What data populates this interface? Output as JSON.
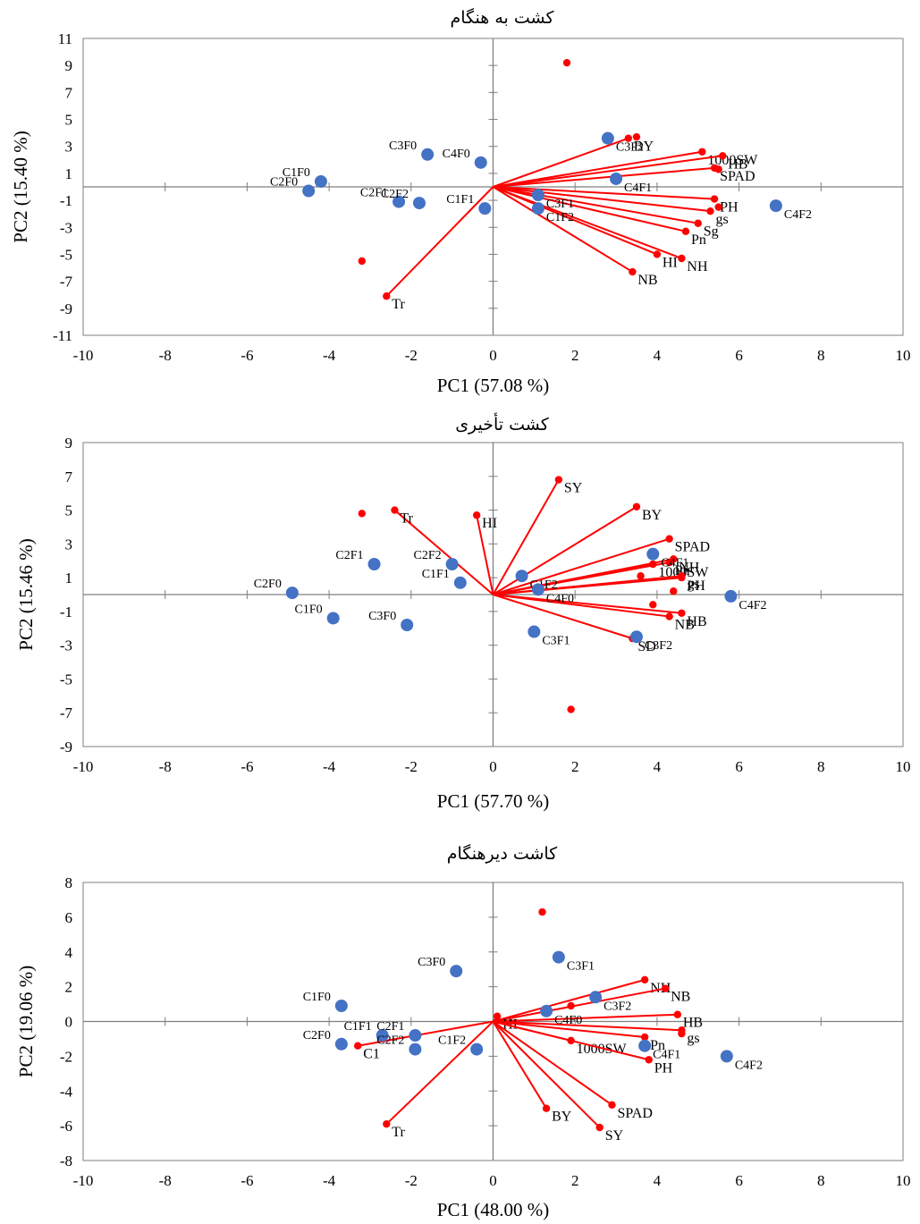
{
  "chart_data": [
    {
      "type": "scatter",
      "title": "کشت به هنگام",
      "xlabel": "PC1 (57.08 %)",
      "ylabel": "PC2 (15.40 %)",
      "xlim": [
        -10,
        10
      ],
      "ylim": [
        -11,
        11
      ],
      "xticks": [
        -10,
        -8,
        -6,
        -4,
        -2,
        0,
        2,
        4,
        6,
        8,
        10
      ],
      "yticks": [
        -11,
        -9,
        -7,
        -5,
        -3,
        -1,
        1,
        3,
        5,
        7,
        9,
        11
      ],
      "grid": false,
      "series": [
        {
          "name": "",
          "kind": "treatments",
          "color": "#4472c4",
          "points": [
            {
              "label": "C1F0",
              "x": -4.2,
              "y": 0.4
            },
            {
              "label": "C2F0",
              "x": -4.5,
              "y": -0.3
            },
            {
              "label": "C3F0",
              "x": -1.6,
              "y": 2.4
            },
            {
              "label": "C4F0",
              "x": -0.3,
              "y": 1.8
            },
            {
              "label": "C2F1",
              "x": -2.3,
              "y": -1.1
            },
            {
              "label": "C2F2",
              "x": -1.8,
              "y": -1.2
            },
            {
              "label": "C1F1",
              "x": -0.2,
              "y": -1.6
            },
            {
              "label": "C3F1",
              "x": 1.1,
              "y": -0.6
            },
            {
              "label": "C1F2",
              "x": 1.1,
              "y": -1.6
            },
            {
              "label": "C3F2",
              "x": 2.8,
              "y": 3.6
            },
            {
              "label": "C4F1",
              "x": 3.0,
              "y": 0.6
            },
            {
              "label": "C4F2",
              "x": 6.9,
              "y": -1.4
            }
          ]
        },
        {
          "name": "",
          "kind": "traits",
          "color": "#ff0000",
          "points": [
            {
              "label": "BY",
              "x": 3.3,
              "y": 3.6
            },
            {
              "label": "",
              "x": 3.5,
              "y": 3.7
            },
            {
              "label": "1000SW",
              "x": 5.1,
              "y": 2.6
            },
            {
              "label": "HB",
              "x": 5.6,
              "y": 2.3
            },
            {
              "label": "SPAD",
              "x": 5.4,
              "y": 1.4
            },
            {
              "label": "",
              "x": 5.5,
              "y": 1.3
            },
            {
              "label": "PH",
              "x": 5.4,
              "y": -0.9
            },
            {
              "label": "",
              "x": 5.5,
              "y": -1.5
            },
            {
              "label": "gs",
              "x": 5.3,
              "y": -1.8
            },
            {
              "label": "Sg",
              "x": 5.0,
              "y": -2.7
            },
            {
              "label": "Pn",
              "x": 4.7,
              "y": -3.3
            },
            {
              "label": "HI",
              "x": 4.0,
              "y": -5.0
            },
            {
              "label": "NH",
              "x": 4.6,
              "y": -5.3
            },
            {
              "label": "NB",
              "x": 3.4,
              "y": -6.3
            },
            {
              "label": "Tr",
              "x": -2.6,
              "y": -8.1
            },
            {
              "label": "",
              "x": -3.2,
              "y": -5.5
            },
            {
              "label": "",
              "x": 1.8,
              "y": 9.2
            }
          ]
        }
      ]
    },
    {
      "type": "scatter",
      "title": "کشت تأخیری",
      "xlabel": "PC1 (57.70 %)",
      "ylabel": "PC2 (15.46 %)",
      "xlim": [
        -10,
        10
      ],
      "ylim": [
        -9,
        9
      ],
      "xticks": [
        -10,
        -8,
        -6,
        -4,
        -2,
        0,
        2,
        4,
        6,
        8,
        10
      ],
      "yticks": [
        -9,
        -7,
        -5,
        -3,
        -1,
        1,
        3,
        5,
        7,
        9
      ],
      "grid": false,
      "series": [
        {
          "name": "",
          "kind": "treatments",
          "color": "#4472c4",
          "points": [
            {
              "label": "C2F0",
              "x": -4.9,
              "y": 0.1
            },
            {
              "label": "C1F0",
              "x": -3.9,
              "y": -1.4
            },
            {
              "label": "C2F1",
              "x": -2.9,
              "y": 1.8
            },
            {
              "label": "C3F0",
              "x": -2.1,
              "y": -1.8
            },
            {
              "label": "C2F2",
              "x": -1.0,
              "y": 1.8
            },
            {
              "label": "C1F1",
              "x": -0.8,
              "y": 0.7
            },
            {
              "label": "C1F2",
              "x": 0.7,
              "y": 1.1
            },
            {
              "label": "C4F0",
              "x": 1.1,
              "y": 0.3
            },
            {
              "label": "C3F1",
              "x": 1.0,
              "y": -2.2
            },
            {
              "label": "C3F2",
              "x": 3.5,
              "y": -2.5
            },
            {
              "label": "C4F1",
              "x": 3.9,
              "y": 2.4
            },
            {
              "label": "C4F2",
              "x": 5.8,
              "y": -0.1
            }
          ]
        },
        {
          "name": "",
          "kind": "traits",
          "color": "#ff0000",
          "points": [
            {
              "label": "SY",
              "x": 1.6,
              "y": 6.8
            },
            {
              "label": "BY",
              "x": 3.5,
              "y": 5.2
            },
            {
              "label": "SPAD",
              "x": 4.3,
              "y": 3.3
            },
            {
              "label": "NH",
              "x": 4.4,
              "y": 2.1
            },
            {
              "label": "Pn",
              "x": 4.3,
              "y": 1.9
            },
            {
              "label": "1000SW",
              "x": 3.9,
              "y": 1.8
            },
            {
              "label": "",
              "x": 3.6,
              "y": 1.1
            },
            {
              "label": "gs",
              "x": 4.6,
              "y": 1.1
            },
            {
              "label": "PH",
              "x": 4.6,
              "y": 1.0
            },
            {
              "label": "",
              "x": 4.4,
              "y": 0.2
            },
            {
              "label": "",
              "x": 3.9,
              "y": -0.6
            },
            {
              "label": "HB",
              "x": 4.6,
              "y": -1.1
            },
            {
              "label": "NB",
              "x": 4.3,
              "y": -1.3
            },
            {
              "label": "SD",
              "x": 3.4,
              "y": -2.6
            },
            {
              "label": "HI",
              "x": -0.4,
              "y": 4.7
            },
            {
              "label": "Tr",
              "x": -2.4,
              "y": 5.0
            },
            {
              "label": "",
              "x": -3.2,
              "y": 4.8
            },
            {
              "label": "",
              "x": 1.9,
              "y": -6.8
            }
          ]
        }
      ]
    },
    {
      "type": "scatter",
      "title": "کاشت دیرهنگام",
      "xlabel": "PC1 (48.00 %)",
      "ylabel": "PC2 (19.06 %)",
      "xlim": [
        -10,
        10
      ],
      "ylim": [
        -8,
        8
      ],
      "xticks": [
        -10,
        -8,
        -6,
        -4,
        -2,
        0,
        2,
        4,
        6,
        8,
        10
      ],
      "yticks": [
        -8,
        -6,
        -4,
        -2,
        0,
        2,
        4,
        6,
        8
      ],
      "grid": false,
      "series": [
        {
          "name": "",
          "kind": "treatments",
          "color": "#4472c4",
          "points": [
            {
              "label": "C1F0",
              "x": -3.7,
              "y": 0.9
            },
            {
              "label": "C2F0",
              "x": -3.7,
              "y": -1.3
            },
            {
              "label": "C1F1",
              "x": -2.7,
              "y": -0.8
            },
            {
              "label": "C2F1",
              "x": -1.9,
              "y": -0.8
            },
            {
              "label": "C2F2",
              "x": -1.9,
              "y": -1.6
            },
            {
              "label": "C3F0",
              "x": -0.9,
              "y": 2.9
            },
            {
              "label": "C1F2",
              "x": -0.4,
              "y": -1.6
            },
            {
              "label": "C4F0",
              "x": 1.3,
              "y": 0.6
            },
            {
              "label": "C3F1",
              "x": 1.6,
              "y": 3.7
            },
            {
              "label": "C3F2",
              "x": 2.5,
              "y": 1.4
            },
            {
              "label": "C4F1",
              "x": 3.7,
              "y": -1.4
            },
            {
              "label": "C4F2",
              "x": 5.7,
              "y": -2.0
            }
          ]
        },
        {
          "name": "",
          "kind": "traits",
          "color": "#ff0000",
          "points": [
            {
              "label": "NH",
              "x": 3.7,
              "y": 2.4
            },
            {
              "label": "NB",
              "x": 4.2,
              "y": 1.9
            },
            {
              "label": "",
              "x": 1.9,
              "y": 0.9
            },
            {
              "label": "HB",
              "x": 4.5,
              "y": 0.4
            },
            {
              "label": "HI",
              "x": 0.1,
              "y": 0.3
            },
            {
              "label": "gs",
              "x": 4.6,
              "y": -0.5
            },
            {
              "label": "",
              "x": 4.6,
              "y": -0.7
            },
            {
              "label": "Pn",
              "x": 3.7,
              "y": -0.9
            },
            {
              "label": "1000SW",
              "x": 1.9,
              "y": -1.1
            },
            {
              "label": "PH",
              "x": 3.8,
              "y": -2.2
            },
            {
              "label": "SPAD",
              "x": 2.9,
              "y": -4.8
            },
            {
              "label": "BY",
              "x": 1.3,
              "y": -5.0
            },
            {
              "label": "SY",
              "x": 2.6,
              "y": -6.1
            },
            {
              "label": "Tr",
              "x": -2.6,
              "y": -5.9
            },
            {
              "label": "C1",
              "x": -3.3,
              "y": -1.4
            },
            {
              "label": "",
              "x": 1.2,
              "y": 6.3
            }
          ]
        }
      ]
    }
  ]
}
